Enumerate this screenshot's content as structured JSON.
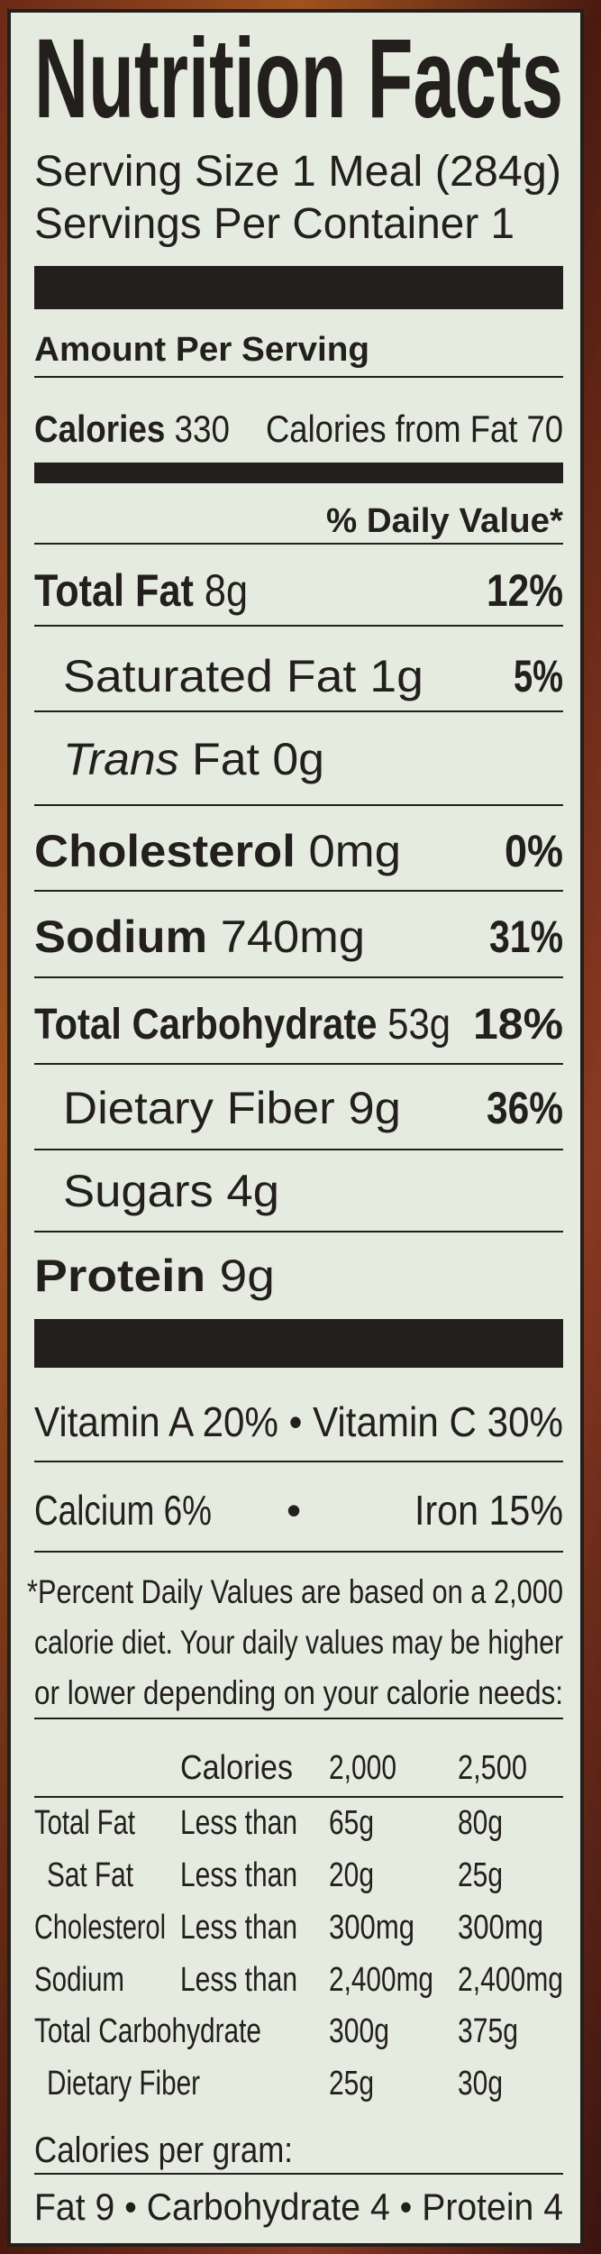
{
  "colors": {
    "panel": "#e6ebe0",
    "ink": "#231f1c",
    "surround": "#5a2416"
  },
  "header": {
    "title": "Nutrition Facts",
    "serving_size": "Serving Size 1 Meal (284g)",
    "servings_per_container": "Servings Per Container 1"
  },
  "amount_per_serving": "Amount Per Serving",
  "calories": {
    "label": "Calories",
    "value": "330",
    "from_fat": "Calories from Fat 70"
  },
  "daily_value_header": "% Daily Value*",
  "nutrients": {
    "total_fat": {
      "name": "Total Fat",
      "amount": "8g",
      "dv": "12%"
    },
    "saturated_fat": {
      "name": "Saturated Fat 1g",
      "dv": "5%"
    },
    "trans_fat": {
      "name_italic": "Trans",
      "name": "Fat 0g"
    },
    "cholesterol": {
      "name": "Cholesterol",
      "amount": "0mg",
      "dv": "0%"
    },
    "sodium": {
      "name": "Sodium",
      "amount": "740mg",
      "dv": "31%"
    },
    "total_carbohydrate": {
      "name": "Total Carbohydrate",
      "amount": "53g",
      "dv": "18%"
    },
    "dietary_fiber": {
      "name": "Dietary Fiber 9g",
      "dv": "36%"
    },
    "sugars": {
      "name": "Sugars 4g"
    },
    "protein": {
      "name": "Protein",
      "amount": "9g"
    }
  },
  "vitamins": {
    "vitamin_a": "Vitamin A 20%",
    "vitamin_c": "Vitamin C 30%",
    "calcium": "Calcium 6%",
    "iron": "Iron 15%",
    "bullet": "•"
  },
  "footnote": [
    "*Percent Daily Values are based on a 2,000",
    "calorie diet. Your daily values may be higher",
    "or lower depending on your calorie needs:"
  ],
  "dv_table": {
    "header": [
      "Calories",
      "2,000",
      "2,500"
    ],
    "rows": [
      [
        "Total Fat",
        "Less than",
        "65g",
        "80g"
      ],
      [
        "Sat Fat",
        "Less than",
        "20g",
        "25g"
      ],
      [
        "Cholesterol",
        "Less than",
        "300mg",
        "300mg"
      ],
      [
        "Sodium",
        "Less than",
        "2,400mg",
        "2,400mg"
      ],
      [
        "Total Carbohydrate",
        "",
        "300g",
        "375g"
      ],
      [
        "Dietary Fiber",
        "",
        "25g",
        "30g"
      ]
    ]
  },
  "calories_per_gram": {
    "label": "Calories per gram:",
    "fat": "Fat 9",
    "carbohydrate": "Carbohydrate 4",
    "protein": "Protein 4",
    "bullet": "•"
  }
}
